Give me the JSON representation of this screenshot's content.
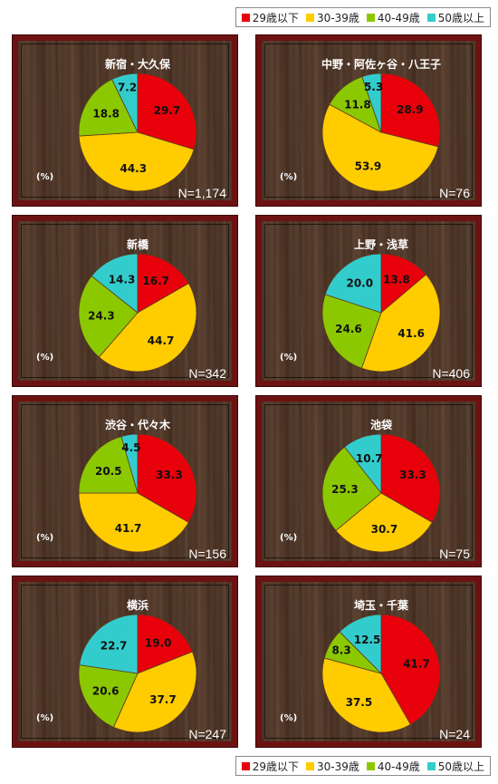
{
  "legend": {
    "items": [
      {
        "label": "29歳以下",
        "color": "#e8000b"
      },
      {
        "label": "30-39歳",
        "color": "#ffcc00"
      },
      {
        "label": "40-49歳",
        "color": "#8cc800"
      },
      {
        "label": "50歳以上",
        "color": "#33cccc"
      }
    ]
  },
  "unit_label": "(%)",
  "chart_data": [
    {
      "type": "pie",
      "title": "新宿・大久保",
      "categories": [
        "29歳以下",
        "30-39歳",
        "40-49歳",
        "50歳以上"
      ],
      "values": [
        29.7,
        44.3,
        18.8,
        7.2
      ],
      "value_labels": [
        "29.7",
        "44.3",
        "18.8",
        "7.2"
      ],
      "n_label": "N=1,174"
    },
    {
      "type": "pie",
      "title": "中野・阿佐ヶ谷・八王子",
      "categories": [
        "29歳以下",
        "30-39歳",
        "40-49歳",
        "50歳以上"
      ],
      "values": [
        28.9,
        53.9,
        11.8,
        5.3
      ],
      "value_labels": [
        "28.9",
        "53.9",
        "11.8",
        "5.3"
      ],
      "n_label": "N=76"
    },
    {
      "type": "pie",
      "title": "新橋",
      "categories": [
        "29歳以下",
        "30-39歳",
        "40-49歳",
        "50歳以上"
      ],
      "values": [
        16.7,
        44.7,
        24.3,
        14.3
      ],
      "value_labels": [
        "16.7",
        "44.7",
        "24.3",
        "14.3"
      ],
      "n_label": "N=342"
    },
    {
      "type": "pie",
      "title": "上野・浅草",
      "categories": [
        "29歳以下",
        "30-39歳",
        "40-49歳",
        "50歳以上"
      ],
      "values": [
        13.8,
        41.6,
        24.6,
        20.0
      ],
      "value_labels": [
        "13.8",
        "41.6",
        "24.6",
        "20.0"
      ],
      "n_label": "N=406"
    },
    {
      "type": "pie",
      "title": "渋谷・代々木",
      "categories": [
        "29歳以下",
        "30-39歳",
        "40-49歳",
        "50歳以上"
      ],
      "values": [
        33.3,
        41.7,
        20.5,
        4.5
      ],
      "value_labels": [
        "33.3",
        "41.7",
        "20.5",
        "4.5"
      ],
      "n_label": "N=156"
    },
    {
      "type": "pie",
      "title": "池袋",
      "categories": [
        "29歳以下",
        "30-39歳",
        "40-49歳",
        "50歳以上"
      ],
      "values": [
        33.3,
        30.7,
        25.3,
        10.7
      ],
      "value_labels": [
        "33.3",
        "30.7",
        "25.3",
        "10.7"
      ],
      "n_label": "N=75"
    },
    {
      "type": "pie",
      "title": "横浜",
      "categories": [
        "29歳以下",
        "30-39歳",
        "40-49歳",
        "50歳以上"
      ],
      "values": [
        19.0,
        37.7,
        20.6,
        22.7
      ],
      "value_labels": [
        "19.0",
        "37.7",
        "20.6",
        "22.7"
      ],
      "n_label": "N=247"
    },
    {
      "type": "pie",
      "title": "埼玉・千葉",
      "categories": [
        "29歳以下",
        "30-39歳",
        "40-49歳",
        "50歳以上"
      ],
      "values": [
        41.7,
        37.5,
        8.3,
        12.5
      ],
      "value_labels": [
        "41.7",
        "37.5",
        "8.3",
        "12.5"
      ],
      "n_label": "N=24"
    }
  ]
}
